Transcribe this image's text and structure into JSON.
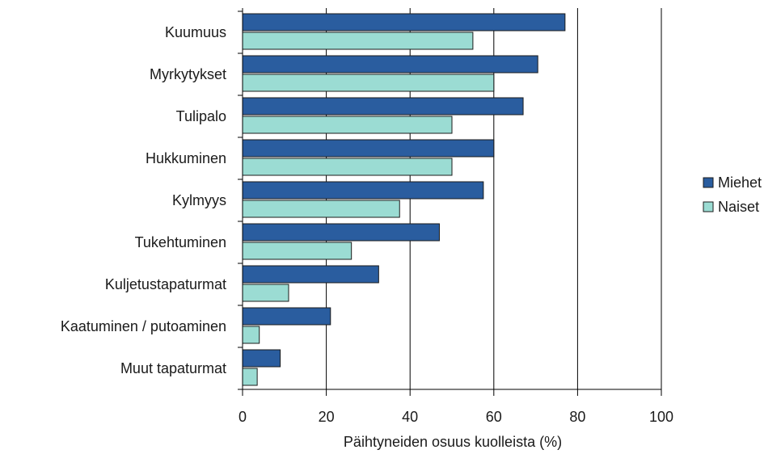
{
  "chart_data": {
    "type": "bar",
    "orientation": "horizontal",
    "title": "",
    "xlabel": "Päihtyneiden osuus kuolleista (%)",
    "ylabel": "",
    "xlim": [
      0,
      100
    ],
    "xticks": [
      0,
      20,
      40,
      60,
      80,
      100
    ],
    "grid": "vertical",
    "legend": "right",
    "categories": [
      "Kuumuus",
      "Myrkytykset",
      "Tulipalo",
      "Hukkuminen",
      "Kylmyys",
      "Tukehtuminen",
      "Kuljetustapaturmat",
      "Kaatuminen / putoaminen",
      "Muut tapaturmat"
    ],
    "series": [
      {
        "name": "Miehet",
        "color": "#2a5d9f",
        "values": [
          77,
          70.5,
          67,
          60,
          57.5,
          47,
          32.5,
          21,
          9
        ]
      },
      {
        "name": "Naiset",
        "color": "#9bdcd3",
        "values": [
          55,
          60,
          50,
          50,
          37.5,
          26,
          11,
          4,
          3.5
        ]
      }
    ]
  }
}
